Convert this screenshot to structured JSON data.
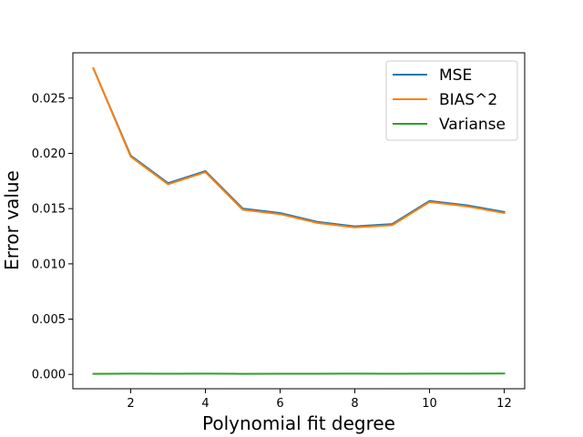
{
  "chart_data": {
    "type": "line",
    "title": "",
    "xlabel": "Polynomial fit degree",
    "ylabel": "Error value",
    "xlim": [
      0.45,
      12.55
    ],
    "ylim": [
      -0.0013,
      0.0291
    ],
    "x_ticks": [
      2,
      4,
      6,
      8,
      10,
      12
    ],
    "y_ticks": [
      0.0,
      0.005,
      0.01,
      0.015,
      0.02,
      0.025
    ],
    "y_tick_labels": [
      "0.000",
      "0.005",
      "0.010",
      "0.015",
      "0.020",
      "0.025"
    ],
    "grid": false,
    "legend_position": "upper right",
    "x": [
      1,
      2,
      3,
      4,
      5,
      6,
      7,
      8,
      9,
      10,
      11,
      12
    ],
    "series": [
      {
        "name": "MSE",
        "color": "#1f77b4",
        "values": [
          0.0277,
          0.0198,
          0.0173,
          0.0184,
          0.015,
          0.0146,
          0.0138,
          0.0134,
          0.0136,
          0.0157,
          0.0153,
          0.0147
        ]
      },
      {
        "name": "BIAS^2",
        "color": "#ff7f0e",
        "values": [
          0.0277,
          0.0197,
          0.0172,
          0.0183,
          0.0149,
          0.0145,
          0.0137,
          0.0133,
          0.0135,
          0.0156,
          0.0152,
          0.0146
        ]
      },
      {
        "name": "Varianse",
        "color": "#2ca02c",
        "values": [
          5e-05,
          7e-05,
          6e-05,
          7e-05,
          5e-05,
          6e-05,
          6e-05,
          7e-05,
          6e-05,
          7e-05,
          7e-05,
          8e-05
        ]
      }
    ]
  }
}
